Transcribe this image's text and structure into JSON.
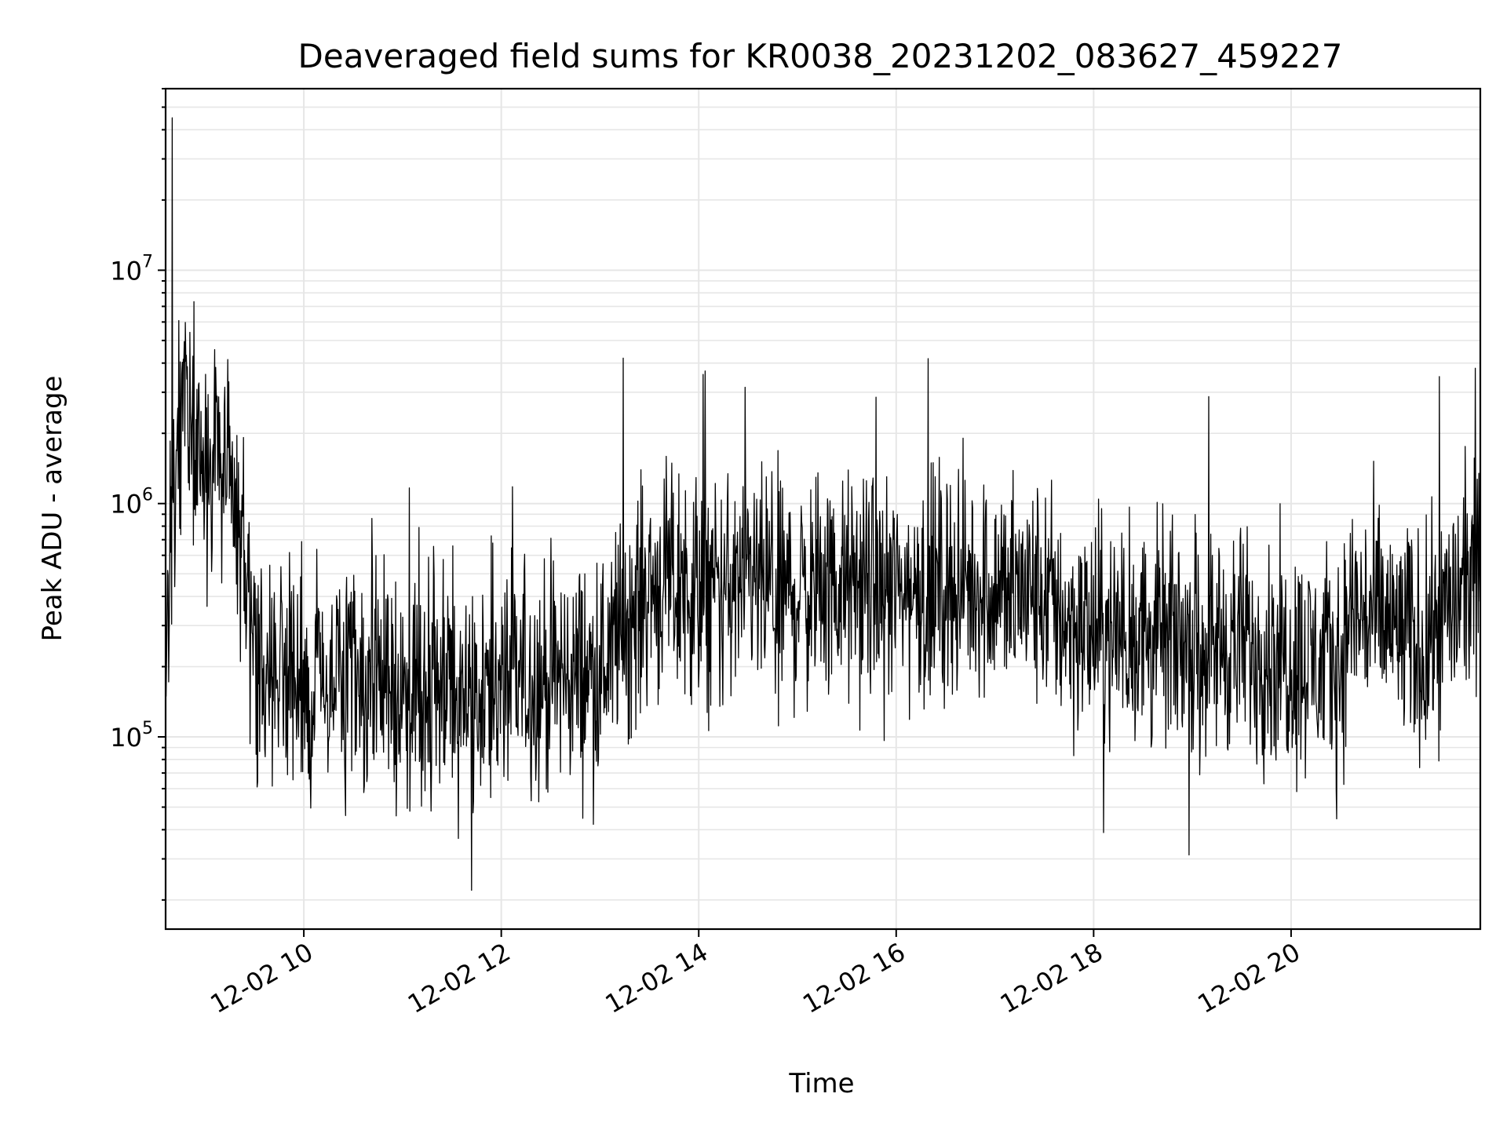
{
  "chart_data": {
    "type": "line",
    "title": "Deaveraged field sums for KR0038_20231202_083627_459227",
    "xlabel": "Time",
    "ylabel": "Peak ADU - average",
    "yscale": "log",
    "ylim": [
      15000,
      60000000
    ],
    "xlim": [
      "2023-12-02 08:36",
      "2023-12-02 21:55"
    ],
    "grid": true,
    "line_color": "#000000",
    "grid_color": "#e6e6e6",
    "x_ticks": [
      {
        "value": "2023-12-02 10:00",
        "label": "12-02 10"
      },
      {
        "value": "2023-12-02 12:00",
        "label": "12-02 12"
      },
      {
        "value": "2023-12-02 14:00",
        "label": "12-02 14"
      },
      {
        "value": "2023-12-02 16:00",
        "label": "12-02 16"
      },
      {
        "value": "2023-12-02 18:00",
        "label": "12-02 18"
      },
      {
        "value": "2023-12-02 20:00",
        "label": "12-02 20"
      }
    ],
    "y_ticks": [
      {
        "value": 100000,
        "base": "10",
        "exp": "5"
      },
      {
        "value": 1000000,
        "base": "10",
        "exp": "6"
      },
      {
        "value": 10000000,
        "base": "10",
        "exp": "7"
      }
    ],
    "series": [
      {
        "points": [
          {
            "x": "2023-12-02 08:36",
            "y": 300000
          },
          {
            "x": "2023-12-02 08:40",
            "y": 45000000
          },
          {
            "x": "2023-12-02 08:45",
            "y": 2500000
          },
          {
            "x": "2023-12-02 09:00",
            "y": 1800000
          },
          {
            "x": "2023-12-02 09:15",
            "y": 1400000
          },
          {
            "x": "2023-12-02 09:30",
            "y": 250000
          },
          {
            "x": "2023-12-02 10:00",
            "y": 180000
          },
          {
            "x": "2023-12-02 10:30",
            "y": 160000
          },
          {
            "x": "2023-12-02 11:00",
            "y": 150000
          },
          {
            "x": "2023-12-02 11:30",
            "y": 160000
          },
          {
            "x": "2023-12-02 11:42",
            "y": 22000
          },
          {
            "x": "2023-12-02 12:00",
            "y": 170000
          },
          {
            "x": "2023-12-02 12:30",
            "y": 180000
          },
          {
            "x": "2023-12-02 13:00",
            "y": 190000
          },
          {
            "x": "2023-12-02 13:14",
            "y": 4200000
          },
          {
            "x": "2023-12-02 13:30",
            "y": 450000
          },
          {
            "x": "2023-12-02 14:00",
            "y": 420000
          },
          {
            "x": "2023-12-02 14:04",
            "y": 3700000
          },
          {
            "x": "2023-12-02 14:30",
            "y": 430000
          },
          {
            "x": "2023-12-02 15:00",
            "y": 420000
          },
          {
            "x": "2023-12-02 15:30",
            "y": 430000
          },
          {
            "x": "2023-12-02 16:00",
            "y": 420000
          },
          {
            "x": "2023-12-02 16:30",
            "y": 450000
          },
          {
            "x": "2023-12-02 17:00",
            "y": 440000
          },
          {
            "x": "2023-12-02 17:30",
            "y": 400000
          },
          {
            "x": "2023-12-02 17:48",
            "y": 300000
          },
          {
            "x": "2023-12-02 18:00",
            "y": 280000
          },
          {
            "x": "2023-12-02 18:30",
            "y": 270000
          },
          {
            "x": "2023-12-02 19:00",
            "y": 260000
          },
          {
            "x": "2023-12-02 19:30",
            "y": 250000
          },
          {
            "x": "2023-12-02 20:00",
            "y": 220000
          },
          {
            "x": "2023-12-02 20:30",
            "y": 200000
          },
          {
            "x": "2023-12-02 20:36",
            "y": 350000
          },
          {
            "x": "2023-12-02 21:00",
            "y": 300000
          },
          {
            "x": "2023-12-02 21:20",
            "y": 240000
          },
          {
            "x": "2023-12-02 21:30",
            "y": 3500000
          },
          {
            "x": "2023-12-02 21:40",
            "y": 400000
          },
          {
            "x": "2023-12-02 21:52",
            "y": 3800000
          },
          {
            "x": "2023-12-02 21:55",
            "y": 450000
          }
        ]
      }
    ]
  }
}
